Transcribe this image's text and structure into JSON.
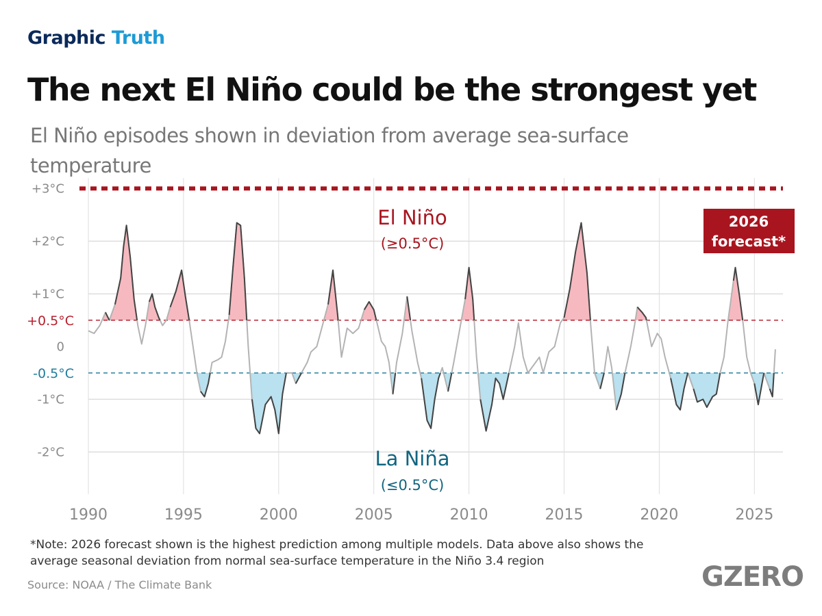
{
  "header": {
    "kicker_part1": "Graphic",
    "kicker_part2": "Truth",
    "title": "The next El Niño could be the strongest yet",
    "subtitle": "El Niño episodes shown in deviation from average sea-surface temperature"
  },
  "footer": {
    "note": "*Note: 2026 forecast shown is the highest prediction among multiple models. Data above also shows the average seasonal deviation from normal sea-surface temperature in the Niño 3.4 region",
    "source": "Source: NOAA / The Climate Bank",
    "logo_text": "GZERO"
  },
  "chart_data": {
    "type": "area",
    "title": "The next El Niño could be the strongest yet",
    "subtitle": "El Niño episodes shown in deviation from average sea-surface temperature",
    "xlabel": "",
    "ylabel": "",
    "xlim": [
      1990,
      2026.5
    ],
    "ylim": [
      -2.8,
      3.2
    ],
    "grid": true,
    "x_ticks": [
      {
        "value": 1990,
        "label": "1990"
      },
      {
        "value": 1995,
        "label": "1995"
      },
      {
        "value": 2000,
        "label": "2000"
      },
      {
        "value": 2005,
        "label": "2005"
      },
      {
        "value": 2010,
        "label": "2010"
      },
      {
        "value": 2015,
        "label": "2015"
      },
      {
        "value": 2020,
        "label": "2020"
      },
      {
        "value": 2025,
        "label": "2025"
      }
    ],
    "y_ticks": [
      {
        "value": 3,
        "label": "+3°C"
      },
      {
        "value": 2,
        "label": "+2°C"
      },
      {
        "value": 1,
        "label": "+1°C"
      },
      {
        "value": 0,
        "label": "0"
      },
      {
        "value": -1,
        "label": "-1°C"
      },
      {
        "value": -2,
        "label": "-2°C"
      }
    ],
    "thresholds": [
      {
        "value": 0.5,
        "label": "+0.5°C",
        "color": "#b5202e",
        "style": "dashed"
      },
      {
        "value": -0.5,
        "label": "-0.5°C",
        "color": "#1f7c9c",
        "style": "dashed"
      }
    ],
    "forecast": {
      "value": 3,
      "label_line1": "2026",
      "label_line2": "forecast*",
      "color": "#a8151f",
      "style": "dotted"
    },
    "annotations": {
      "el_nino": {
        "line1": "El Niño",
        "line2": "(≥0.5°C)",
        "color": "#a8151f"
      },
      "la_nina": {
        "line1": "La Niña",
        "line2": "(≤0.5°C)",
        "color": "#11657f"
      }
    },
    "colors": {
      "el_nino_fill": "#f7b9c0",
      "la_nina_fill": "#b9e1ef",
      "line_active": "#444444",
      "line_neutral": "#b3b3b3",
      "grid": "#dddddd"
    },
    "series": [
      {
        "values": [
          [
            1990.0,
            0.3
          ],
          [
            1990.3,
            0.25
          ],
          [
            1990.6,
            0.4
          ],
          [
            1990.9,
            0.65
          ],
          [
            1991.1,
            0.5
          ],
          [
            1991.4,
            0.8
          ],
          [
            1991.7,
            1.3
          ],
          [
            1991.85,
            1.9
          ],
          [
            1992.0,
            2.3
          ],
          [
            1992.2,
            1.7
          ],
          [
            1992.4,
            0.9
          ],
          [
            1992.6,
            0.4
          ],
          [
            1992.8,
            0.05
          ],
          [
            1993.0,
            0.4
          ],
          [
            1993.2,
            0.85
          ],
          [
            1993.35,
            1.0
          ],
          [
            1993.5,
            0.75
          ],
          [
            1993.7,
            0.55
          ],
          [
            1993.9,
            0.4
          ],
          [
            1994.1,
            0.5
          ],
          [
            1994.3,
            0.75
          ],
          [
            1994.6,
            1.05
          ],
          [
            1994.9,
            1.45
          ],
          [
            1995.1,
            0.95
          ],
          [
            1995.3,
            0.5
          ],
          [
            1995.5,
            0.0
          ],
          [
            1995.7,
            -0.5
          ],
          [
            1995.9,
            -0.85
          ],
          [
            1996.1,
            -0.95
          ],
          [
            1996.3,
            -0.7
          ],
          [
            1996.5,
            -0.3
          ],
          [
            1996.8,
            -0.25
          ],
          [
            1997.0,
            -0.2
          ],
          [
            1997.2,
            0.1
          ],
          [
            1997.4,
            0.6
          ],
          [
            1997.6,
            1.5
          ],
          [
            1997.8,
            2.35
          ],
          [
            1998.0,
            2.3
          ],
          [
            1998.2,
            1.3
          ],
          [
            1998.4,
            0.0
          ],
          [
            1998.6,
            -1.0
          ],
          [
            1998.8,
            -1.55
          ],
          [
            1999.0,
            -1.65
          ],
          [
            1999.3,
            -1.1
          ],
          [
            1999.6,
            -0.95
          ],
          [
            1999.8,
            -1.2
          ],
          [
            2000.0,
            -1.65
          ],
          [
            2000.2,
            -0.9
          ],
          [
            2000.4,
            -0.5
          ],
          [
            2000.7,
            -0.5
          ],
          [
            2000.9,
            -0.7
          ],
          [
            2001.2,
            -0.5
          ],
          [
            2001.5,
            -0.3
          ],
          [
            2001.7,
            -0.1
          ],
          [
            2002.0,
            0.0
          ],
          [
            2002.3,
            0.4
          ],
          [
            2002.6,
            0.8
          ],
          [
            2002.85,
            1.45
          ],
          [
            2003.1,
            0.6
          ],
          [
            2003.3,
            -0.2
          ],
          [
            2003.6,
            0.35
          ],
          [
            2003.9,
            0.25
          ],
          [
            2004.2,
            0.35
          ],
          [
            2004.5,
            0.7
          ],
          [
            2004.75,
            0.85
          ],
          [
            2005.0,
            0.7
          ],
          [
            2005.2,
            0.4
          ],
          [
            2005.4,
            0.1
          ],
          [
            2005.6,
            0.0
          ],
          [
            2005.8,
            -0.3
          ],
          [
            2006.0,
            -0.9
          ],
          [
            2006.2,
            -0.3
          ],
          [
            2006.5,
            0.25
          ],
          [
            2006.75,
            0.95
          ],
          [
            2007.0,
            0.3
          ],
          [
            2007.3,
            -0.3
          ],
          [
            2007.5,
            -0.6
          ],
          [
            2007.8,
            -1.4
          ],
          [
            2008.0,
            -1.55
          ],
          [
            2008.2,
            -1.0
          ],
          [
            2008.4,
            -0.6
          ],
          [
            2008.6,
            -0.4
          ],
          [
            2008.9,
            -0.85
          ],
          [
            2009.2,
            -0.3
          ],
          [
            2009.5,
            0.3
          ],
          [
            2009.8,
            0.9
          ],
          [
            2010.0,
            1.5
          ],
          [
            2010.2,
            0.9
          ],
          [
            2010.4,
            -0.2
          ],
          [
            2010.6,
            -1.0
          ],
          [
            2010.9,
            -1.6
          ],
          [
            2011.2,
            -1.1
          ],
          [
            2011.4,
            -0.6
          ],
          [
            2011.6,
            -0.7
          ],
          [
            2011.8,
            -1.0
          ],
          [
            2012.1,
            -0.5
          ],
          [
            2012.4,
            0.0
          ],
          [
            2012.6,
            0.45
          ],
          [
            2012.85,
            -0.2
          ],
          [
            2013.1,
            -0.5
          ],
          [
            2013.4,
            -0.35
          ],
          [
            2013.7,
            -0.2
          ],
          [
            2013.9,
            -0.5
          ],
          [
            2014.2,
            -0.1
          ],
          [
            2014.5,
            0.0
          ],
          [
            2014.8,
            0.45
          ],
          [
            2015.0,
            0.55
          ],
          [
            2015.3,
            1.1
          ],
          [
            2015.6,
            1.8
          ],
          [
            2015.9,
            2.35
          ],
          [
            2016.2,
            1.4
          ],
          [
            2016.4,
            0.4
          ],
          [
            2016.6,
            -0.5
          ],
          [
            2016.9,
            -0.8
          ],
          [
            2017.1,
            -0.5
          ],
          [
            2017.3,
            0.0
          ],
          [
            2017.5,
            -0.4
          ],
          [
            2017.75,
            -1.2
          ],
          [
            2018.0,
            -0.9
          ],
          [
            2018.2,
            -0.5
          ],
          [
            2018.5,
            0.0
          ],
          [
            2018.7,
            0.4
          ],
          [
            2018.85,
            0.75
          ],
          [
            2019.1,
            0.65
          ],
          [
            2019.3,
            0.55
          ],
          [
            2019.6,
            0.0
          ],
          [
            2019.9,
            0.25
          ],
          [
            2020.1,
            0.15
          ],
          [
            2020.3,
            -0.2
          ],
          [
            2020.6,
            -0.6
          ],
          [
            2020.9,
            -1.1
          ],
          [
            2021.1,
            -1.2
          ],
          [
            2021.3,
            -0.8
          ],
          [
            2021.5,
            -0.5
          ],
          [
            2021.8,
            -0.8
          ],
          [
            2022.0,
            -1.05
          ],
          [
            2022.3,
            -1.0
          ],
          [
            2022.5,
            -1.15
          ],
          [
            2022.8,
            -0.95
          ],
          [
            2023.0,
            -0.9
          ],
          [
            2023.2,
            -0.5
          ],
          [
            2023.4,
            -0.2
          ],
          [
            2023.6,
            0.45
          ],
          [
            2023.9,
            1.25
          ],
          [
            2024.0,
            1.5
          ],
          [
            2024.2,
            1.0
          ],
          [
            2024.4,
            0.45
          ],
          [
            2024.6,
            -0.2
          ],
          [
            2024.8,
            -0.5
          ],
          [
            2025.0,
            -0.7
          ],
          [
            2025.2,
            -1.1
          ],
          [
            2025.5,
            -0.5
          ],
          [
            2025.8,
            -0.8
          ],
          [
            2025.95,
            -0.95
          ],
          [
            2026.1,
            -0.05
          ]
        ]
      }
    ]
  }
}
